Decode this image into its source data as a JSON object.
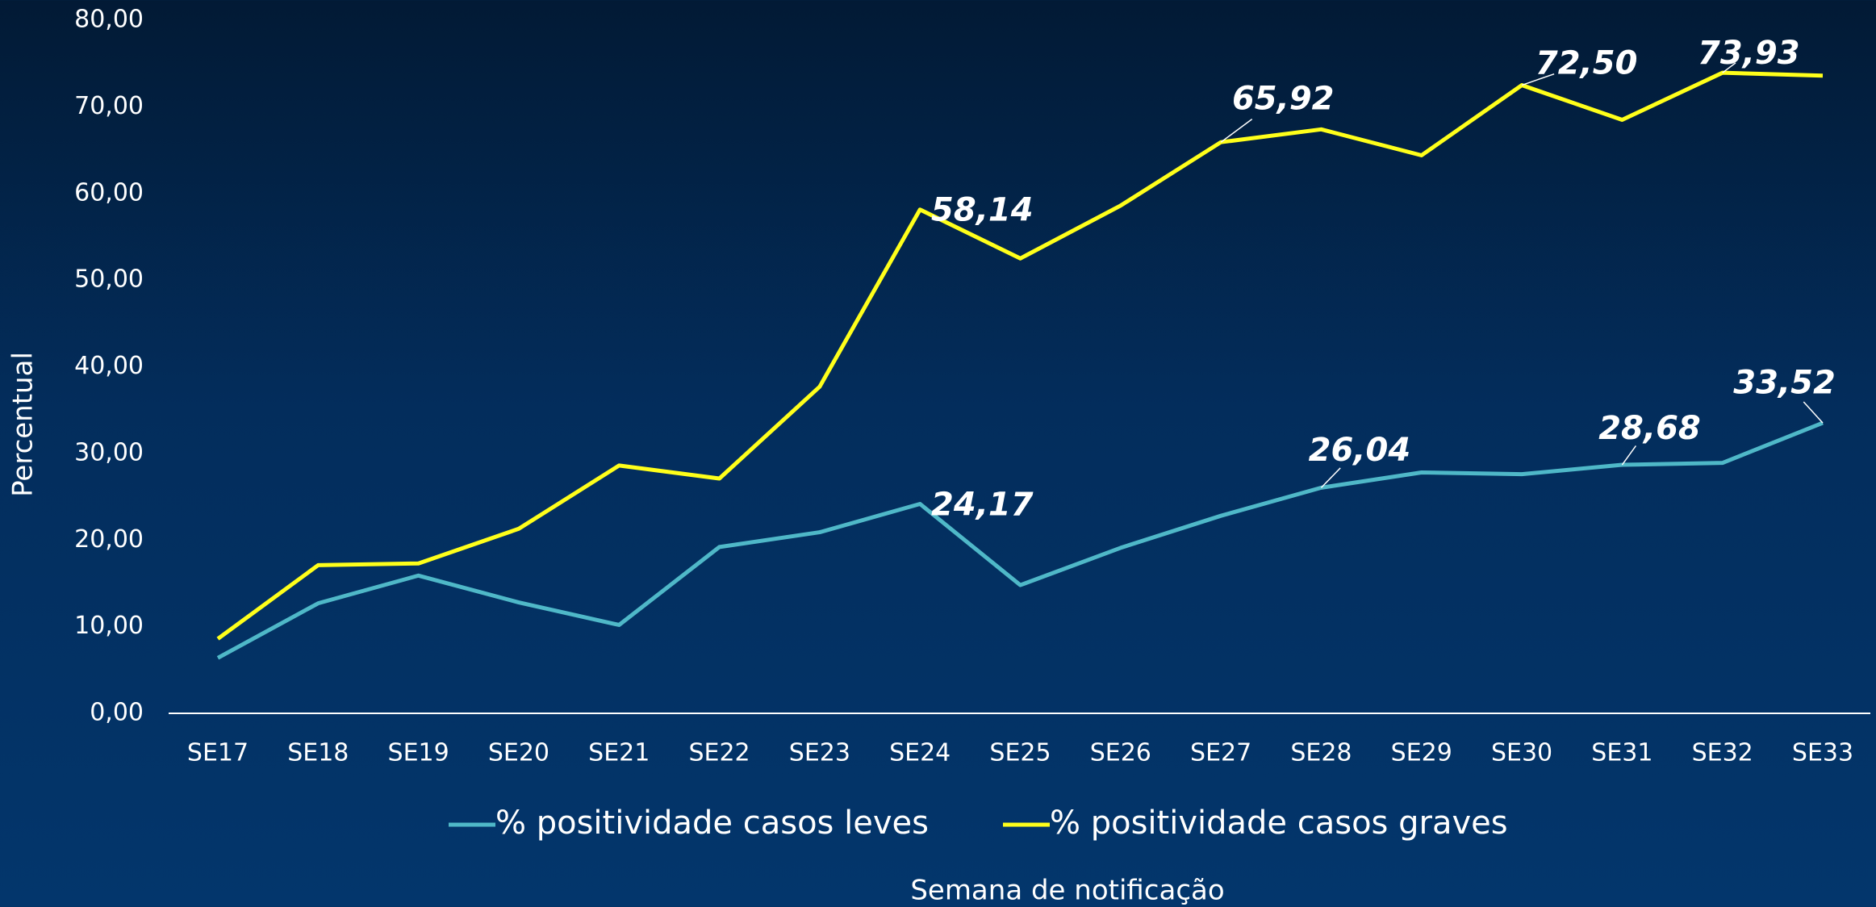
{
  "chart_data": {
    "type": "line",
    "y_label": "Percentual",
    "x_label": "Semana de notificação",
    "categories": [
      "SE17",
      "SE18",
      "SE19",
      "SE20",
      "SE21",
      "SE22",
      "SE23",
      "SE24",
      "SE25",
      "SE26",
      "SE27",
      "SE28",
      "SE29",
      "SE30",
      "SE31",
      "SE32",
      "SE33"
    ],
    "series": [
      {
        "name": "% positividade casos leves",
        "color": "#4fb8c8",
        "values": [
          6.4,
          12.7,
          15.9,
          12.8,
          10.2,
          19.2,
          20.9,
          24.17,
          14.8,
          19.1,
          22.8,
          26.04,
          27.8,
          27.6,
          28.68,
          28.9,
          33.52
        ],
        "value_labels": [
          null,
          null,
          null,
          null,
          null,
          null,
          null,
          "24,17",
          null,
          null,
          null,
          "26,04",
          null,
          null,
          "28,68",
          null,
          "33,52"
        ]
      },
      {
        "name": "% positividade casos graves",
        "color": "#ffff1a",
        "values": [
          8.6,
          17.1,
          17.3,
          21.3,
          28.6,
          27.1,
          37.7,
          58.14,
          52.5,
          58.6,
          65.92,
          67.4,
          64.4,
          72.5,
          68.5,
          73.93,
          73.6
        ],
        "value_labels": [
          null,
          null,
          null,
          null,
          null,
          null,
          null,
          "58,14",
          null,
          null,
          "65,92",
          null,
          null,
          "72,50",
          null,
          "73,93",
          null
        ]
      }
    ],
    "ylim": [
      0,
      80
    ],
    "yticks": [
      {
        "value": 0,
        "label": "0,00"
      },
      {
        "value": 10,
        "label": "10,00"
      },
      {
        "value": 20,
        "label": "20,00"
      },
      {
        "value": 30,
        "label": "30,00"
      },
      {
        "value": 40,
        "label": "40,00"
      },
      {
        "value": 50,
        "label": "50,00"
      },
      {
        "value": 60,
        "label": "60,00"
      },
      {
        "value": 70,
        "label": "70,00"
      },
      {
        "value": 80,
        "label": "80,00"
      }
    ],
    "legend": "bottom"
  }
}
